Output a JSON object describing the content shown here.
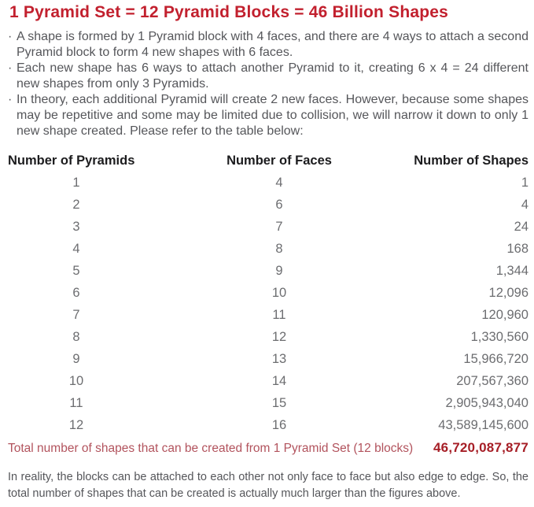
{
  "page": {
    "title": "1 Pyramid Set = 12 Pyramid Blocks = 46 Billion Shapes",
    "bullets": [
      "A shape is formed by 1 Pyramid block with 4 faces, and there are 4 ways to attach a second Pyramid block to form 4 new shapes with 6 faces.",
      "Each new shape has 6 ways to attach another Pyramid to it, creating 6 x 4 = 24 different new shapes from only 3 Pyramids.",
      "In theory, each additional Pyramid will create 2 new faces. However, because some shapes may be repetitive and some may be limited due to collision, we will narrow it down to only 1 new shape created. Please refer to the table below:"
    ],
    "table": {
      "headers": [
        "Number of Pyramids",
        "Number of Faces",
        "Number of Shapes"
      ],
      "rows": [
        [
          "1",
          "4",
          "1"
        ],
        [
          "2",
          "6",
          "4"
        ],
        [
          "3",
          "7",
          "24"
        ],
        [
          "4",
          "8",
          "168"
        ],
        [
          "5",
          "9",
          "1,344"
        ],
        [
          "6",
          "10",
          "12,096"
        ],
        [
          "7",
          "11",
          "120,960"
        ],
        [
          "8",
          "12",
          "1,330,560"
        ],
        [
          "9",
          "13",
          "15,966,720"
        ],
        [
          "10",
          "14",
          "207,567,360"
        ],
        [
          "11",
          "15",
          "2,905,943,040"
        ],
        [
          "12",
          "16",
          "43,589,145,600"
        ]
      ],
      "total_label": "Total number of shapes that can be created from 1 Pyramid Set (12 blocks)",
      "total_value": "46,720,087,877"
    },
    "footnote": "In reality, the blocks can be attached to each other not only face to face but also edge to edge. So, the total number of shapes that can be created is actually much larger than the figures above.",
    "bullet_marker": "·",
    "colors": {
      "title_red": "#c2202e",
      "total_label_red": "#b2535d",
      "total_value_red": "#a61e26",
      "body_gray": "#55565a",
      "table_number_gray": "#6c6d70",
      "header_black": "#1c1c1e"
    }
  }
}
